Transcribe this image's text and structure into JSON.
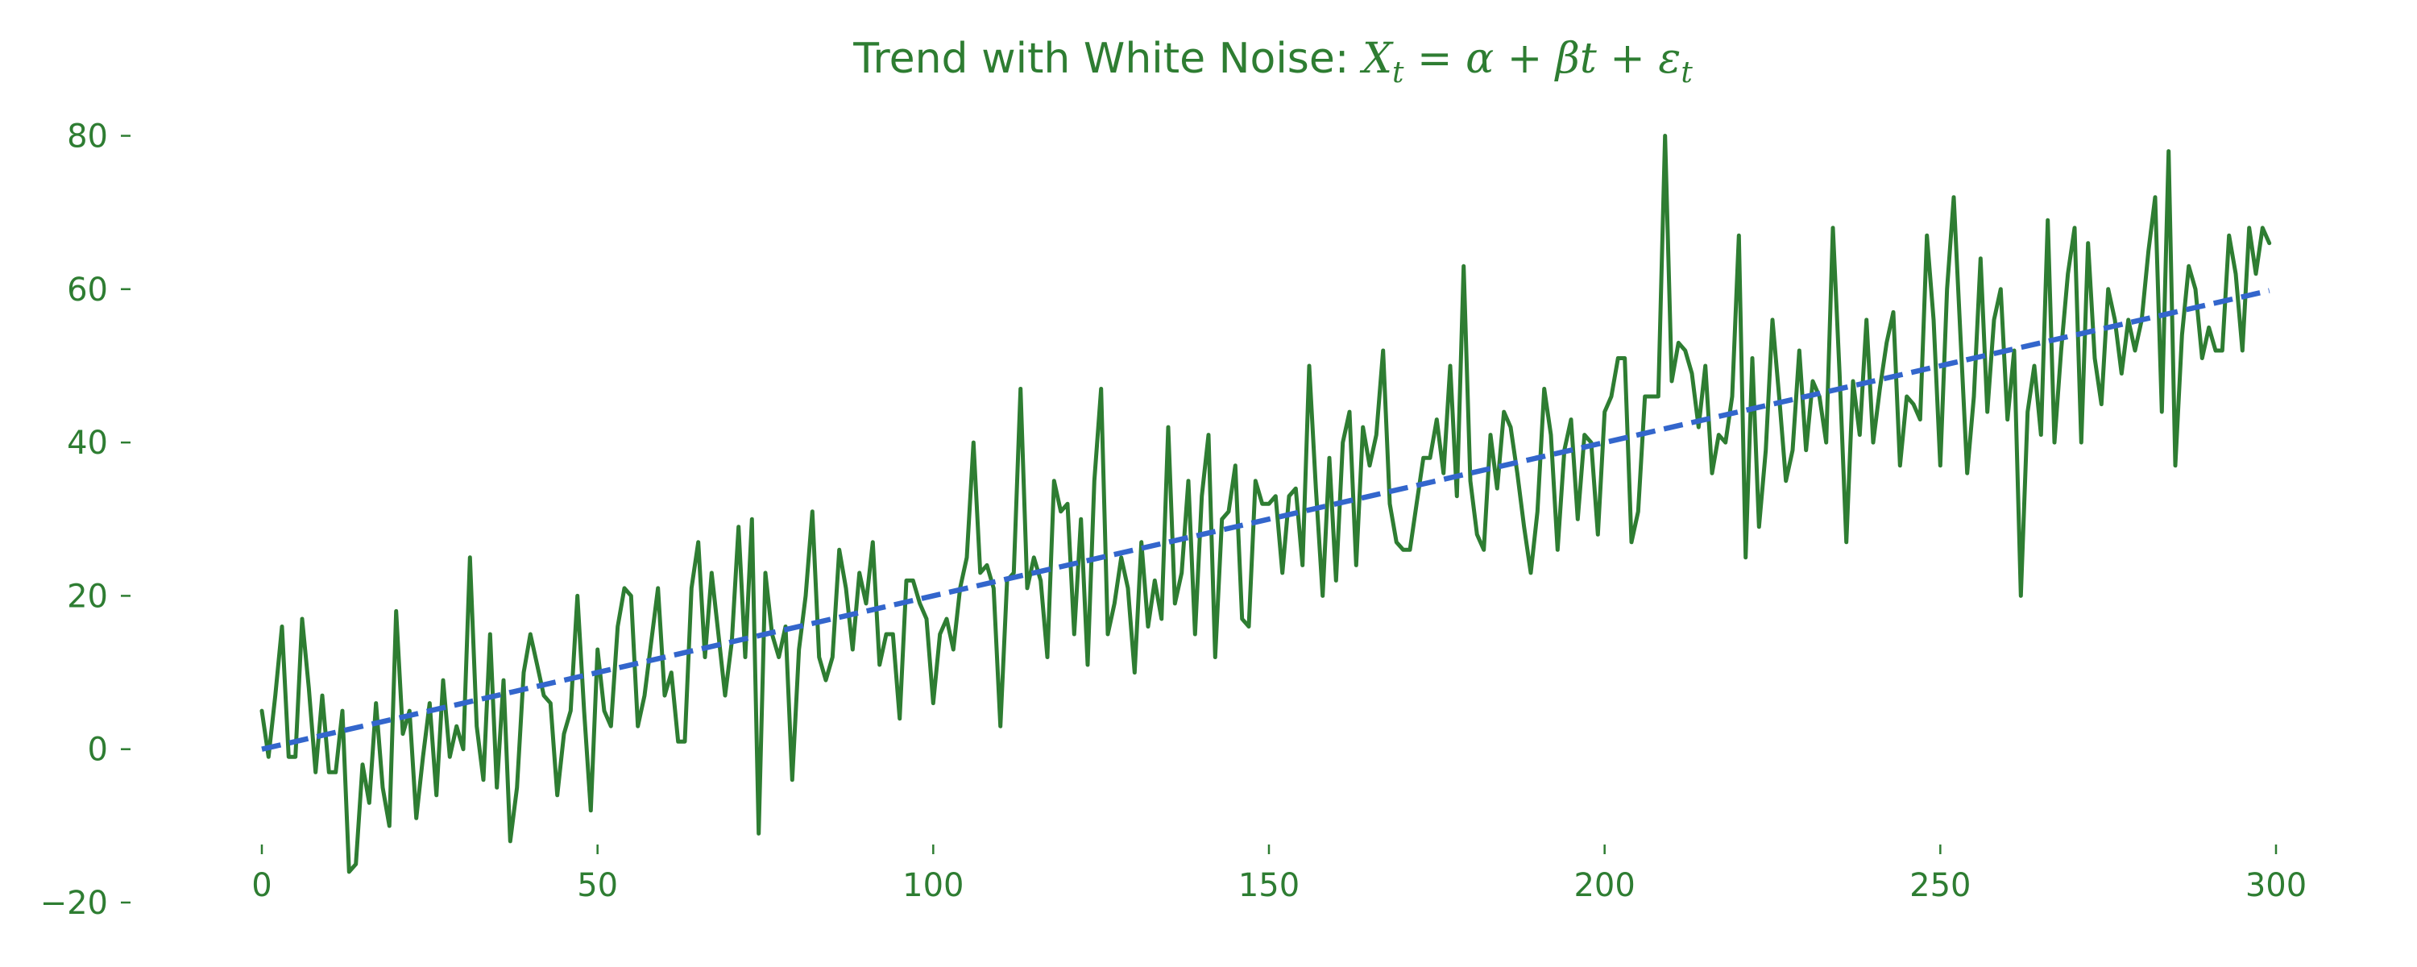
{
  "chart_data": {
    "type": "line",
    "title": "Trend with White Noise: X_t = α + βt + ε_t",
    "title_parts": {
      "prefix": "Trend with White Noise: ",
      "var": "X",
      "var_sub": "t",
      "eq": " = α + βt + ε",
      "eps_sub": "t"
    },
    "xlim": [
      -15,
      315
    ],
    "ylim": [
      -20,
      83
    ],
    "xticks": [
      0,
      50,
      100,
      150,
      200,
      250,
      300
    ],
    "yticks": [
      -20,
      0,
      20,
      40,
      60,
      80
    ],
    "grid": false,
    "colors": {
      "text": "#2e7d32",
      "series": "#2e7d32",
      "trend": "#3366cc"
    },
    "series": [
      {
        "style": "solid",
        "color": "#2e7d32",
        "x_start": 0,
        "x_step": 1,
        "values": [
          5,
          -1,
          7,
          16,
          -1,
          -1,
          17,
          8,
          -3,
          7,
          -3,
          -3,
          5,
          -16,
          -15,
          -2,
          -7,
          6,
          -5,
          -10,
          18,
          2,
          5,
          -9,
          -1,
          6,
          -6,
          9,
          -1,
          3,
          0,
          25,
          3,
          -4,
          15,
          -5,
          9,
          -12,
          -5,
          10,
          15,
          11,
          7,
          6,
          -6,
          2,
          5,
          20,
          5,
          -8,
          13,
          5,
          3,
          16,
          21,
          20,
          3,
          7,
          14,
          21,
          7,
          10,
          1,
          1,
          21,
          27,
          12,
          23,
          15,
          7,
          14,
          29,
          12,
          30,
          -11,
          23,
          15,
          12,
          16,
          -4,
          13,
          20,
          31,
          12,
          9,
          12,
          26,
          21,
          13,
          23,
          19,
          27,
          11,
          15,
          15,
          4,
          22,
          22,
          19,
          17,
          6,
          15,
          17,
          13,
          21,
          25,
          40,
          23,
          24,
          21,
          3,
          22,
          23,
          47,
          21,
          25,
          22,
          12,
          35,
          31,
          32,
          15,
          30,
          11,
          35,
          47,
          15,
          19,
          25,
          21,
          10,
          27,
          16,
          22,
          17,
          42,
          19,
          23,
          35,
          15,
          33,
          41,
          12,
          30,
          31,
          37,
          17,
          16,
          35,
          32,
          32,
          33,
          23,
          33,
          34,
          24,
          50,
          34,
          20,
          38,
          22,
          40,
          44,
          24,
          42,
          37,
          41,
          52,
          32,
          27,
          26,
          26,
          32,
          38,
          38,
          43,
          36,
          50,
          33,
          63,
          35,
          28,
          26,
          41,
          34,
          44,
          42,
          36,
          29,
          23,
          31,
          47,
          41,
          26,
          39,
          43,
          30,
          41,
          40,
          28,
          44,
          46,
          51,
          51,
          27,
          31,
          46,
          46,
          46,
          80,
          48,
          53,
          52,
          49,
          42,
          50,
          36,
          41,
          40,
          46,
          67,
          25,
          51,
          29,
          39,
          56,
          46,
          35,
          39,
          52,
          39,
          48,
          46,
          40,
          68,
          49,
          27,
          48,
          41,
          56,
          40,
          47,
          53,
          57,
          37,
          46,
          45,
          43,
          67,
          56,
          37,
          60,
          72,
          54,
          36,
          46,
          64,
          44,
          56,
          60,
          43,
          52,
          20,
          44,
          50,
          41,
          69,
          40,
          52,
          62,
          68,
          40,
          66,
          51,
          45,
          60,
          56,
          49,
          56,
          52,
          56,
          65,
          72,
          44,
          78,
          37,
          54,
          63,
          60,
          51,
          55,
          52,
          52,
          67,
          62,
          52,
          68,
          62,
          68,
          66
        ]
      },
      {
        "style": "dashed",
        "color": "#3366cc",
        "x": [
          0,
          299
        ],
        "y": [
          0,
          59.8
        ]
      }
    ]
  }
}
